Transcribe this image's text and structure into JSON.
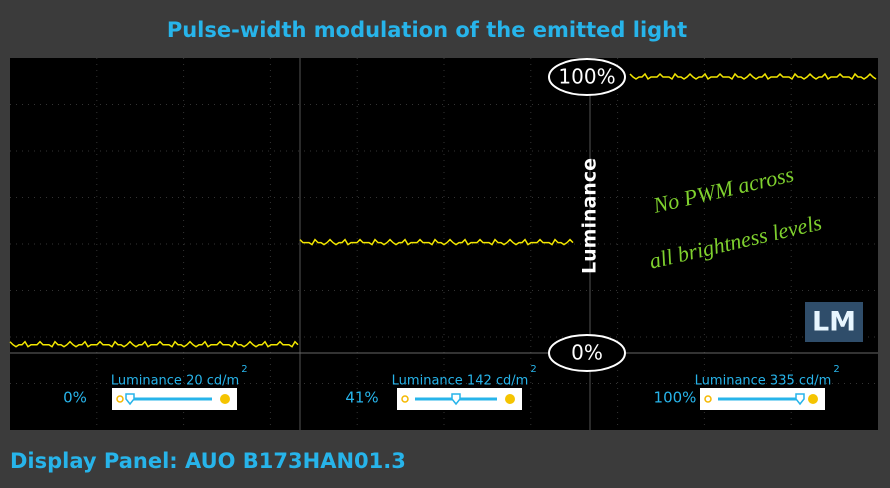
{
  "chart_data": {
    "type": "line",
    "title": "Pulse-width modulation of the emitted light",
    "footer": "Display Panel: AUO B173HAN01.3",
    "axis_label": "Luminance",
    "ylim": [
      0,
      100
    ],
    "yticks": [
      {
        "value": 0,
        "label": "0%"
      },
      {
        "value": 100,
        "label": "100%"
      }
    ],
    "annotation": [
      "No PWM across",
      "all brightness levels"
    ],
    "logo": "LM",
    "color": "#f2e600",
    "panels": [
      {
        "brightness": "0%",
        "luminance": "Luminance 20 cd/m",
        "unit_power": "2",
        "level": 3
      },
      {
        "brightness": "41%",
        "luminance": "Luminance 142 cd/m",
        "unit_power": "2",
        "level": 40
      },
      {
        "brightness": "100%",
        "luminance": "Luminance 335 cd/m",
        "unit_power": "2",
        "level": 100
      }
    ]
  }
}
